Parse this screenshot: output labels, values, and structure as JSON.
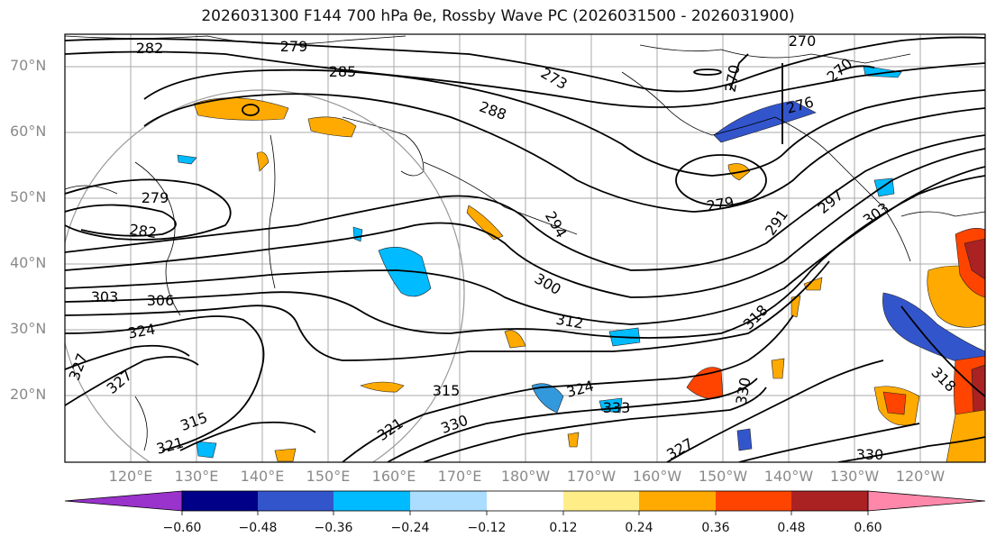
{
  "title": "2026031300 F144 700 hPa θe, Rossby Wave PC (2026031500 - 2026031900)",
  "lat_labels": [
    "70°N",
    "60°N",
    "50°N",
    "40°N",
    "30°N",
    "20°N"
  ],
  "lon_labels": [
    "120°E",
    "130°E",
    "140°E",
    "150°E",
    "160°E",
    "170°E",
    "180°W",
    "170°W",
    "160°W",
    "150°W",
    "140°W",
    "130°W",
    "120°W"
  ],
  "contour_labels": [
    "282",
    "279",
    "285",
    "273",
    "270",
    "270",
    "270",
    "276",
    "288",
    "279",
    "294",
    "291",
    "297",
    "303",
    "279",
    "282",
    "303",
    "306",
    "300",
    "312",
    "318",
    "324",
    "327",
    "327",
    "315",
    "321",
    "324",
    "333",
    "330",
    "330",
    "327",
    "330",
    "315",
    "321",
    "318"
  ],
  "colorbar": {
    "ticks": [
      "−0.60",
      "−0.48",
      "−0.36",
      "−0.24",
      "−0.12",
      "0.12",
      "0.24",
      "0.36",
      "0.48",
      "0.60"
    ],
    "colors": [
      "#9933cc",
      "#000088",
      "#3355cc",
      "#00bbff",
      "#aaddff",
      "#ffffff",
      "#ffee88",
      "#ffaa00",
      "#ff4400",
      "#aa2222",
      "#ff88aa"
    ]
  }
}
